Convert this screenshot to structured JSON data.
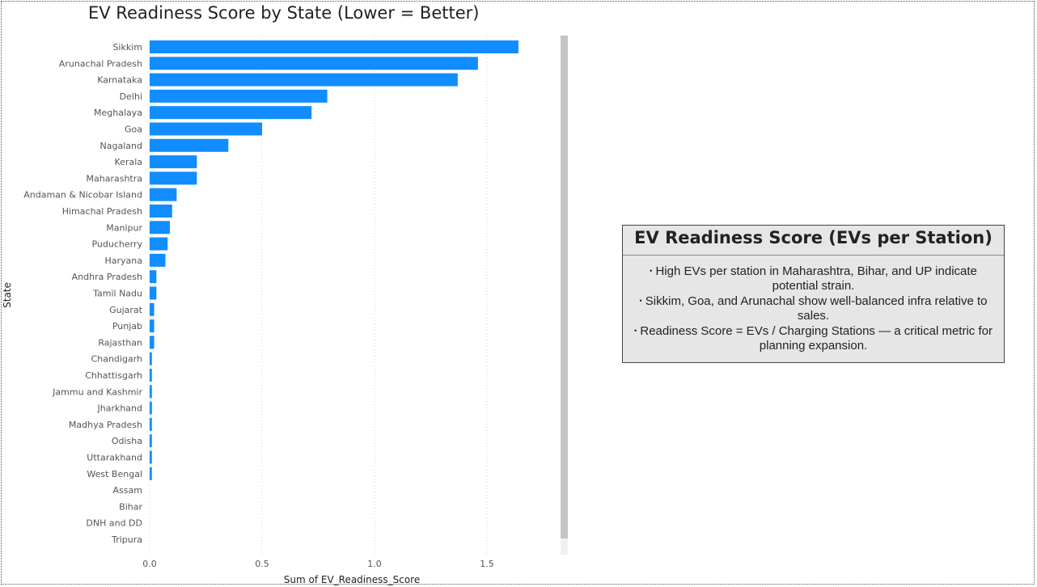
{
  "chart_data": {
    "type": "bar",
    "orientation": "horizontal",
    "title": "EV Readiness Score by State (Lower = Better)",
    "xlabel": "Sum of EV_Readiness_Score",
    "ylabel": "State",
    "xlim": [
      0,
      1.85
    ],
    "xticks": [
      {
        "value": 0,
        "label": "0.0"
      },
      {
        "value": 0.5,
        "label": "0.5"
      },
      {
        "value": 1,
        "label": "1.0"
      },
      {
        "value": 1.5,
        "label": "1.5"
      }
    ],
    "grid": "vertical-dotted",
    "bar_color": "#118DFF",
    "categories": [
      "Sikkim",
      "Arunachal Pradesh",
      "Karnataka",
      "Delhi",
      "Meghalaya",
      "Goa",
      "Nagaland",
      "Kerala",
      "Maharashtra",
      "Andaman & Nicobar Island",
      "Himachal Pradesh",
      "Manipur",
      "Puducherry",
      "Haryana",
      "Andhra Pradesh",
      "Tamil Nadu",
      "Gujarat",
      "Punjab",
      "Rajasthan",
      "Chandigarh",
      "Chhattisgarh",
      "Jammu and Kashmir",
      "Jharkhand",
      "Madhya Pradesh",
      "Odisha",
      "Uttarakhand",
      "West Bengal",
      "Assam",
      "Bihar",
      "DNH and DD",
      "Tripura"
    ],
    "values": [
      1.64,
      1.46,
      1.37,
      0.79,
      0.72,
      0.5,
      0.35,
      0.21,
      0.21,
      0.12,
      0.1,
      0.09,
      0.08,
      0.07,
      0.03,
      0.03,
      0.02,
      0.02,
      0.02,
      0.01,
      0.01,
      0.01,
      0.01,
      0.01,
      0.01,
      0.01,
      0.01,
      0,
      0,
      0,
      0
    ]
  },
  "textbox": {
    "title": "EV Readiness Score (EVs per Station)",
    "bullet_glyph": "•",
    "bullets": [
      "High EVs per station in Maharashtra, Bihar, and UP indicate potential strain.",
      "Sikkim, Goa, and Arunachal show well-balanced infra relative to sales.",
      "Readiness Score = EVs / Charging Stations — a critical metric for planning expansion."
    ]
  }
}
